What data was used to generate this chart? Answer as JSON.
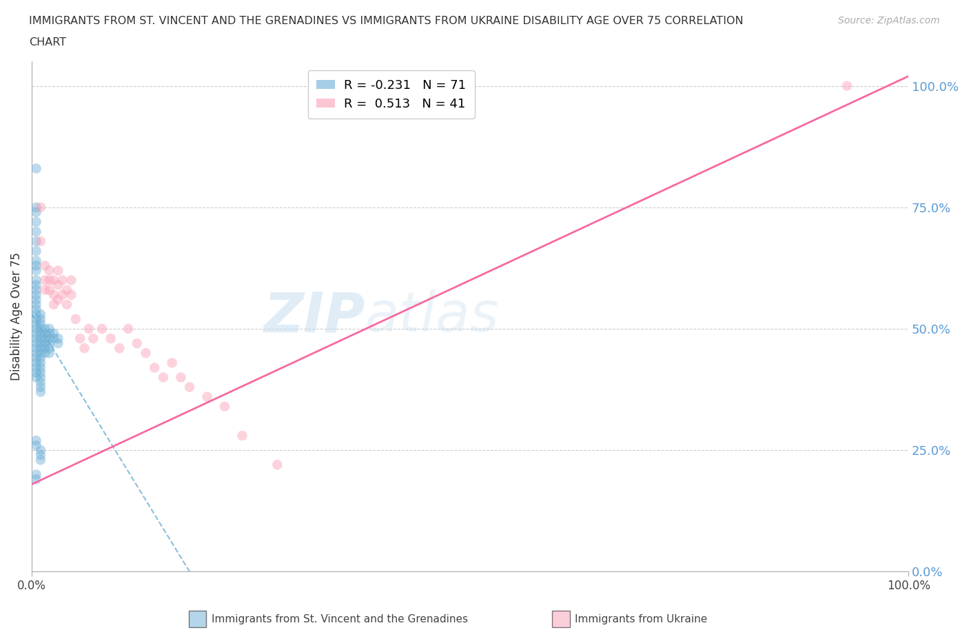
{
  "title_line1": "IMMIGRANTS FROM ST. VINCENT AND THE GRENADINES VS IMMIGRANTS FROM UKRAINE DISABILITY AGE OVER 75 CORRELATION",
  "title_line2": "CHART",
  "source": "Source: ZipAtlas.com",
  "ylabel_label": "Disability Age Over 75",
  "legend_blue_R": "R = -0.231",
  "legend_blue_N": "N = 71",
  "legend_pink_R": "R =  0.513",
  "legend_pink_N": "N = 41",
  "blue_color": "#6BAED6",
  "pink_color": "#FA9FB5",
  "blue_line_color": "#6BAED6",
  "pink_line_color": "#F768A1",
  "blue_line_x": [
    0.0,
    0.18
  ],
  "blue_line_y": [
    0.53,
    0.0
  ],
  "pink_line_x": [
    0.0,
    1.0
  ],
  "pink_line_y": [
    0.18,
    1.02
  ],
  "blue_scatter_x": [
    0.005,
    0.005,
    0.005,
    0.005,
    0.005,
    0.005,
    0.005,
    0.005,
    0.005,
    0.005,
    0.005,
    0.005,
    0.005,
    0.005,
    0.005,
    0.005,
    0.005,
    0.005,
    0.005,
    0.005,
    0.005,
    0.005,
    0.005,
    0.005,
    0.005,
    0.005,
    0.005,
    0.005,
    0.005,
    0.005,
    0.01,
    0.01,
    0.01,
    0.01,
    0.01,
    0.01,
    0.01,
    0.01,
    0.01,
    0.01,
    0.01,
    0.01,
    0.01,
    0.01,
    0.01,
    0.01,
    0.01,
    0.015,
    0.015,
    0.015,
    0.015,
    0.015,
    0.015,
    0.02,
    0.02,
    0.02,
    0.02,
    0.02,
    0.02,
    0.025,
    0.025,
    0.03,
    0.03,
    0.005,
    0.005,
    0.01,
    0.01,
    0.01,
    0.005,
    0.005,
    0.005
  ],
  "blue_scatter_y": [
    0.83,
    0.74,
    0.72,
    0.7,
    0.68,
    0.66,
    0.64,
    0.63,
    0.62,
    0.6,
    0.59,
    0.58,
    0.57,
    0.56,
    0.55,
    0.54,
    0.53,
    0.52,
    0.51,
    0.5,
    0.49,
    0.48,
    0.47,
    0.46,
    0.45,
    0.44,
    0.43,
    0.42,
    0.41,
    0.4,
    0.53,
    0.52,
    0.51,
    0.5,
    0.49,
    0.48,
    0.47,
    0.46,
    0.45,
    0.44,
    0.43,
    0.42,
    0.41,
    0.4,
    0.39,
    0.38,
    0.37,
    0.5,
    0.49,
    0.48,
    0.47,
    0.46,
    0.45,
    0.5,
    0.49,
    0.48,
    0.47,
    0.46,
    0.45,
    0.49,
    0.48,
    0.48,
    0.47,
    0.27,
    0.26,
    0.25,
    0.24,
    0.23,
    0.2,
    0.19,
    0.75
  ],
  "pink_scatter_x": [
    0.01,
    0.01,
    0.015,
    0.015,
    0.015,
    0.02,
    0.02,
    0.02,
    0.025,
    0.025,
    0.025,
    0.03,
    0.03,
    0.03,
    0.035,
    0.035,
    0.04,
    0.04,
    0.045,
    0.045,
    0.05,
    0.055,
    0.06,
    0.065,
    0.07,
    0.08,
    0.09,
    0.1,
    0.11,
    0.12,
    0.13,
    0.14,
    0.15,
    0.16,
    0.17,
    0.18,
    0.2,
    0.22,
    0.24,
    0.28,
    0.93
  ],
  "pink_scatter_y": [
    0.75,
    0.68,
    0.63,
    0.6,
    0.58,
    0.62,
    0.6,
    0.58,
    0.6,
    0.57,
    0.55,
    0.62,
    0.59,
    0.56,
    0.6,
    0.57,
    0.58,
    0.55,
    0.6,
    0.57,
    0.52,
    0.48,
    0.46,
    0.5,
    0.48,
    0.5,
    0.48,
    0.46,
    0.5,
    0.47,
    0.45,
    0.42,
    0.4,
    0.43,
    0.4,
    0.38,
    0.36,
    0.34,
    0.28,
    0.22,
    1.0
  ],
  "xlim": [
    0.0,
    1.0
  ],
  "ylim": [
    0.0,
    1.05
  ],
  "yticks": [
    0.0,
    0.25,
    0.5,
    0.75,
    1.0
  ],
  "ytick_labels": [
    "0.0%",
    "25.0%",
    "50.0%",
    "75.0%",
    "100.0%"
  ],
  "xticks": [
    0.0,
    1.0
  ],
  "xtick_labels": [
    "0.0%",
    "100.0%"
  ]
}
